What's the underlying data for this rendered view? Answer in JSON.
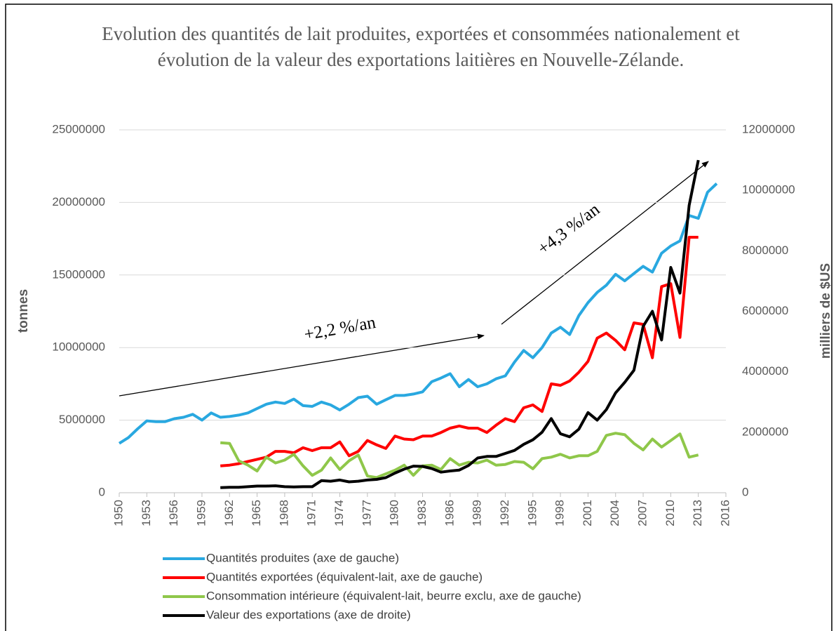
{
  "chart_data": {
    "type": "line",
    "title": "Evolution des quantités de lait produites, exportées et consommées nationalement et évolution de la valeur des exportations laitières en Nouvelle-Zélande.",
    "y_label": "tonnes",
    "y2_label": "milliers de $US",
    "annotations": [
      "+2,2 %/an",
      "+4,3 %/an"
    ],
    "x": [
      1950,
      1951,
      1952,
      1953,
      1954,
      1955,
      1956,
      1957,
      1958,
      1959,
      1960,
      1961,
      1962,
      1963,
      1964,
      1965,
      1966,
      1967,
      1968,
      1969,
      1970,
      1971,
      1972,
      1973,
      1974,
      1975,
      1976,
      1977,
      1978,
      1979,
      1980,
      1981,
      1982,
      1983,
      1984,
      1985,
      1986,
      1987,
      1988,
      1989,
      1990,
      1991,
      1992,
      1993,
      1994,
      1995,
      1996,
      1997,
      1998,
      1999,
      2000,
      2001,
      2002,
      2003,
      2004,
      2005,
      2006,
      2007,
      2008,
      2009,
      2010,
      2011,
      2012,
      2013,
      2014,
      2015
    ],
    "xlim": [
      1950,
      2016
    ],
    "xticks": [
      1950,
      1953,
      1956,
      1959,
      1962,
      1965,
      1968,
      1971,
      1974,
      1977,
      1980,
      1983,
      1986,
      1989,
      1992,
      1995,
      1998,
      2001,
      2004,
      2007,
      2010,
      2013,
      2016
    ],
    "ylim": [
      0,
      25000000
    ],
    "yticks": [
      0,
      5000000,
      10000000,
      15000000,
      20000000,
      25000000
    ],
    "y2lim": [
      0,
      12000000
    ],
    "y2ticks": [
      0,
      2000000,
      4000000,
      6000000,
      8000000,
      10000000,
      12000000
    ],
    "grid": true,
    "series": [
      {
        "name": "Quantités produites (axe de gauche)",
        "color": "#29a8e0",
        "values": [
          3400000,
          3800000,
          4400000,
          4950000,
          4900000,
          4900000,
          5100000,
          5200000,
          5400000,
          5000000,
          5500000,
          5200000,
          5250000,
          5350000,
          5500000,
          5800000,
          6100000,
          6250000,
          6150000,
          6450000,
          6000000,
          5950000,
          6250000,
          6050000,
          5700000,
          6100000,
          6550000,
          6650000,
          6100000,
          6400000,
          6700000,
          6700000,
          6800000,
          6950000,
          7650000,
          7900000,
          8200000,
          7300000,
          7800000,
          7300000,
          7500000,
          7850000,
          8050000,
          9000000,
          9800000,
          9300000,
          10000000,
          11000000,
          11400000,
          10900000,
          12200000,
          13100000,
          13800000,
          14300000,
          15050000,
          14600000,
          15100000,
          15600000,
          15200000,
          16500000,
          17000000,
          17350000,
          19100000,
          18900000,
          20700000,
          21300000
        ]
      },
      {
        "name": "Quantités exportées (équivalent-lait, axe de gauche)",
        "color": "#ff0000",
        "values": [
          null,
          null,
          null,
          null,
          null,
          null,
          null,
          null,
          null,
          null,
          null,
          1850000,
          1900000,
          2000000,
          2150000,
          2300000,
          2450000,
          2850000,
          2850000,
          2750000,
          3100000,
          2900000,
          3100000,
          3100000,
          3500000,
          2550000,
          2850000,
          3600000,
          3300000,
          3050000,
          3900000,
          3700000,
          3650000,
          3900000,
          3900000,
          4150000,
          4450000,
          4600000,
          4450000,
          4450000,
          4150000,
          4650000,
          5100000,
          4900000,
          5850000,
          6050000,
          5600000,
          7500000,
          7400000,
          7700000,
          8300000,
          9050000,
          10650000,
          11000000,
          10500000,
          9850000,
          11700000,
          11600000,
          9300000,
          14200000,
          14400000,
          10700000,
          17600000,
          17600000,
          null,
          null
        ]
      },
      {
        "name": "Consommation intérieure (équivalent-lait, beurre exclu, axe de gauche)",
        "color": "#8fc74a",
        "values": [
          null,
          null,
          null,
          null,
          null,
          null,
          null,
          null,
          null,
          null,
          null,
          3450000,
          3400000,
          2200000,
          1900000,
          1500000,
          2450000,
          2050000,
          2250000,
          2650000,
          1850000,
          1200000,
          1550000,
          2400000,
          1600000,
          2200000,
          2600000,
          1150000,
          1050000,
          1300000,
          1550000,
          1900000,
          1200000,
          1850000,
          1900000,
          1600000,
          2350000,
          1900000,
          2100000,
          2050000,
          2250000,
          1900000,
          1950000,
          2150000,
          2100000,
          1650000,
          2350000,
          2450000,
          2650000,
          2400000,
          2550000,
          2550000,
          2850000,
          3950000,
          4100000,
          4000000,
          3400000,
          2950000,
          3700000,
          3150000,
          3600000,
          4050000,
          2450000,
          2600000,
          null,
          null
        ]
      },
      {
        "name": "Valeur des exportations (axe de droite)",
        "color": "#000000",
        "axis": "y2",
        "values": [
          null,
          null,
          null,
          null,
          null,
          null,
          null,
          null,
          null,
          null,
          null,
          170000,
          180000,
          180000,
          200000,
          220000,
          220000,
          230000,
          200000,
          190000,
          200000,
          200000,
          400000,
          380000,
          420000,
          360000,
          380000,
          420000,
          440000,
          500000,
          650000,
          780000,
          880000,
          870000,
          800000,
          680000,
          720000,
          750000,
          900000,
          1150000,
          1200000,
          1200000,
          1300000,
          1400000,
          1600000,
          1750000,
          2000000,
          2450000,
          1950000,
          1850000,
          2100000,
          2650000,
          2400000,
          2750000,
          3300000,
          3650000,
          4050000,
          5500000,
          6000000,
          5050000,
          7450000,
          6600000,
          9500000,
          11000000,
          null,
          null
        ]
      }
    ]
  }
}
